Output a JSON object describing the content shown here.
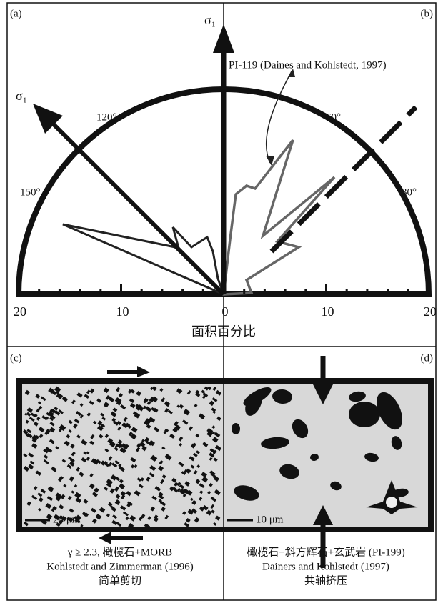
{
  "panel_labels": [
    "(a)",
    "(b)",
    "(c)",
    "(d)"
  ],
  "rose": {
    "sigma_vertical": "σ₁",
    "sigma_inclined": "σ₁",
    "angle_labels": [
      "120°",
      "60°",
      "150°",
      "30°"
    ],
    "axis_labels": [
      "20",
      "10",
      "0",
      "10",
      "20"
    ],
    "axis_title": "面积百分比",
    "annotation": "PI-119 (Daines and Kohlstedt, 1997)"
  },
  "micrographs": {
    "left_scale": "20 μm",
    "right_scale": "10 μm",
    "left_caption": [
      "γ ≥ 2.3, 橄榄石+MORB",
      "Kohlstedt and Zimmerman (1996)",
      "简单剪切"
    ],
    "right_caption": [
      "橄榄石+斜方辉石+玄武岩 (PI-199)",
      "Dainers and Kohlstedt (1997)",
      "共轴挤压"
    ]
  }
}
